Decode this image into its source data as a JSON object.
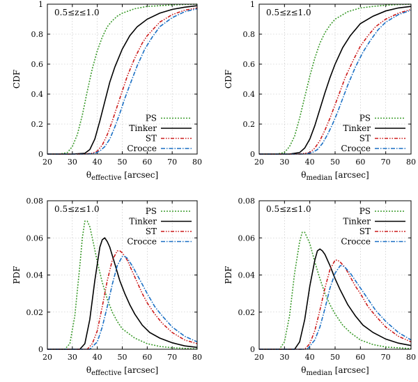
{
  "chart_data": [
    {
      "type": "line",
      "panel": "top-left",
      "ylabel": "CDF",
      "xlabel_main": "θ",
      "xlabel_sub": "effective",
      "xlabel_unit": " [arcsec]",
      "annotation": "0.5≤z≤1.0",
      "legend_position": "bottom-right",
      "xlim": [
        20,
        80
      ],
      "ylim": [
        0,
        1
      ],
      "xticks": [
        "20",
        "30",
        "40",
        "50",
        "60",
        "70",
        "80"
      ],
      "yticks": [
        "0",
        "0.2",
        "0.4",
        "0.6",
        "0.8",
        "1"
      ],
      "series": [
        {
          "name": "PS",
          "color": "#3a9a2a",
          "dash": "2 2",
          "x": [
            20,
            25,
            28,
            30,
            32,
            34,
            36,
            38,
            40,
            42,
            44,
            46,
            48,
            50,
            55,
            60,
            65,
            70,
            75,
            80
          ],
          "y": [
            0,
            0,
            0.01,
            0.05,
            0.13,
            0.26,
            0.42,
            0.57,
            0.69,
            0.78,
            0.85,
            0.89,
            0.92,
            0.94,
            0.97,
            0.985,
            0.99,
            0.995,
            0.998,
            1.0
          ]
        },
        {
          "name": "Tinker",
          "color": "#000000",
          "dash": "",
          "x": [
            20,
            30,
            35,
            37,
            39,
            41,
            43,
            45,
            47,
            50,
            53,
            56,
            60,
            65,
            70,
            75,
            80
          ],
          "y": [
            0,
            0,
            0.005,
            0.03,
            0.1,
            0.22,
            0.35,
            0.48,
            0.58,
            0.7,
            0.79,
            0.85,
            0.9,
            0.94,
            0.965,
            0.98,
            0.99
          ]
        },
        {
          "name": "ST",
          "color": "#cc1a1a",
          "dash": "5 2 1.5 2 1.5 2",
          "x": [
            20,
            35,
            38,
            40,
            42,
            44,
            46,
            48,
            50,
            52,
            55,
            58,
            60,
            65,
            70,
            75,
            80
          ],
          "y": [
            0,
            0,
            0.005,
            0.02,
            0.06,
            0.13,
            0.22,
            0.32,
            0.42,
            0.52,
            0.64,
            0.74,
            0.79,
            0.88,
            0.93,
            0.96,
            0.975
          ]
        },
        {
          "name": "Crocce",
          "color": "#1a6fc4",
          "dash": "6 2 1.5 2",
          "x": [
            20,
            36,
            39,
            41,
            43,
            45,
            47,
            49,
            51,
            53,
            56,
            59,
            62,
            65,
            70,
            75,
            80
          ],
          "y": [
            0,
            0,
            0.005,
            0.02,
            0.05,
            0.1,
            0.18,
            0.27,
            0.37,
            0.46,
            0.59,
            0.7,
            0.78,
            0.85,
            0.91,
            0.95,
            0.97
          ]
        }
      ]
    },
    {
      "type": "line",
      "panel": "top-right",
      "ylabel": "CDF",
      "xlabel_main": "θ",
      "xlabel_sub": "median",
      "xlabel_unit": " [arcsec]",
      "annotation": "0.5≤z≤1.0",
      "legend_position": "bottom-right",
      "xlim": [
        20,
        80
      ],
      "ylim": [
        0,
        1
      ],
      "xticks": [
        "20",
        "30",
        "40",
        "50",
        "60",
        "70",
        "80"
      ],
      "yticks": [
        "0",
        "0.2",
        "0.4",
        "0.6",
        "0.8",
        "1"
      ],
      "series": [
        {
          "name": "PS",
          "color": "#3a9a2a",
          "dash": "2 2",
          "x": [
            20,
            27,
            30,
            32,
            34,
            36,
            38,
            40,
            42,
            44,
            46,
            48,
            50,
            55,
            60,
            65,
            70,
            75,
            80
          ],
          "y": [
            0,
            0,
            0.01,
            0.05,
            0.12,
            0.24,
            0.38,
            0.52,
            0.64,
            0.74,
            0.81,
            0.86,
            0.9,
            0.95,
            0.975,
            0.985,
            0.993,
            0.997,
            1.0
          ]
        },
        {
          "name": "Tinker",
          "color": "#000000",
          "dash": "",
          "x": [
            20,
            32,
            36,
            38,
            40,
            42,
            44,
            46,
            48,
            50,
            53,
            56,
            60,
            65,
            70,
            75,
            80
          ],
          "y": [
            0,
            0,
            0.01,
            0.04,
            0.1,
            0.19,
            0.3,
            0.41,
            0.51,
            0.6,
            0.71,
            0.79,
            0.87,
            0.92,
            0.955,
            0.975,
            0.985
          ]
        },
        {
          "name": "ST",
          "color": "#cc1a1a",
          "dash": "5 2 1.5 2 1.5 2",
          "x": [
            20,
            36,
            40,
            42,
            44,
            46,
            48,
            50,
            52,
            54,
            57,
            60,
            63,
            66,
            70,
            75,
            80
          ],
          "y": [
            0,
            0,
            0.01,
            0.04,
            0.09,
            0.16,
            0.24,
            0.33,
            0.42,
            0.51,
            0.62,
            0.72,
            0.79,
            0.85,
            0.9,
            0.94,
            0.965
          ]
        },
        {
          "name": "Crocce",
          "color": "#1a6fc4",
          "dash": "6 2 1.5 2",
          "x": [
            20,
            38,
            41,
            43,
            45,
            47,
            49,
            51,
            53,
            55,
            58,
            61,
            64,
            67,
            70,
            75,
            80
          ],
          "y": [
            0,
            0,
            0.01,
            0.03,
            0.07,
            0.13,
            0.2,
            0.28,
            0.37,
            0.46,
            0.58,
            0.68,
            0.76,
            0.83,
            0.88,
            0.93,
            0.96
          ]
        }
      ]
    },
    {
      "type": "line",
      "panel": "bottom-left",
      "ylabel": "PDF",
      "xlabel_main": "θ",
      "xlabel_sub": "effective",
      "xlabel_unit": " [arcsec]",
      "annotation": "0.5≤z≤1.0",
      "legend_position": "top-right",
      "xlim": [
        20,
        80
      ],
      "ylim": [
        0,
        0.08
      ],
      "xticks": [
        "20",
        "30",
        "40",
        "50",
        "60",
        "70",
        "80"
      ],
      "yticks": [
        "0",
        "0.02",
        "0.04",
        "0.06",
        "0.08"
      ],
      "series": [
        {
          "name": "PS",
          "color": "#3a9a2a",
          "dash": "2 2",
          "x": [
            20,
            27,
            29,
            31,
            33,
            34,
            35,
            36,
            37,
            38,
            40,
            42,
            44,
            46,
            48,
            50,
            55,
            60,
            65,
            70,
            80
          ],
          "y": [
            0,
            0,
            0.003,
            0.018,
            0.045,
            0.06,
            0.069,
            0.069,
            0.066,
            0.06,
            0.047,
            0.036,
            0.027,
            0.02,
            0.015,
            0.011,
            0.006,
            0.003,
            0.0015,
            0.0008,
            0.0002
          ]
        },
        {
          "name": "Tinker",
          "color": "#000000",
          "dash": "",
          "x": [
            20,
            33,
            35,
            37,
            39,
            41,
            42,
            43,
            44,
            45,
            47,
            49,
            51,
            53,
            55,
            58,
            61,
            65,
            70,
            75,
            80
          ],
          "y": [
            0,
            0,
            0.003,
            0.016,
            0.037,
            0.055,
            0.059,
            0.06,
            0.058,
            0.055,
            0.046,
            0.037,
            0.03,
            0.024,
            0.019,
            0.013,
            0.009,
            0.006,
            0.0035,
            0.0018,
            0.001
          ]
        },
        {
          "name": "ST",
          "color": "#cc1a1a",
          "dash": "5 2 1.5 2 1.5 2",
          "x": [
            20,
            36,
            38,
            40,
            42,
            44,
            46,
            48,
            49,
            50,
            52,
            54,
            56,
            58,
            60,
            63,
            66,
            70,
            75,
            80
          ],
          "y": [
            0,
            0,
            0.003,
            0.01,
            0.023,
            0.037,
            0.048,
            0.053,
            0.053,
            0.052,
            0.048,
            0.042,
            0.036,
            0.03,
            0.025,
            0.019,
            0.014,
            0.009,
            0.005,
            0.003
          ]
        },
        {
          "name": "Crocce",
          "color": "#1a6fc4",
          "dash": "6 2 1.5 2",
          "x": [
            20,
            37,
            40,
            42,
            44,
            46,
            48,
            50,
            51,
            52,
            54,
            56,
            58,
            60,
            63,
            66,
            70,
            75,
            80
          ],
          "y": [
            0,
            0,
            0.004,
            0.012,
            0.023,
            0.035,
            0.045,
            0.05,
            0.05,
            0.049,
            0.045,
            0.04,
            0.035,
            0.03,
            0.023,
            0.018,
            0.012,
            0.007,
            0.004
          ]
        }
      ]
    },
    {
      "type": "line",
      "panel": "bottom-right",
      "ylabel": "PDF",
      "xlabel_main": "θ",
      "xlabel_sub": "median",
      "xlabel_unit": " [arcsec]",
      "annotation": "0.5≤z≤1.0",
      "legend_position": "top-right",
      "xlim": [
        20,
        80
      ],
      "ylim": [
        0,
        0.08
      ],
      "xticks": [
        "20",
        "30",
        "40",
        "50",
        "60",
        "70",
        "80"
      ],
      "yticks": [
        "0",
        "0.02",
        "0.04",
        "0.06",
        "0.08"
      ],
      "series": [
        {
          "name": "PS",
          "color": "#3a9a2a",
          "dash": "2 2",
          "x": [
            20,
            28,
            30,
            32,
            34,
            36,
            37,
            38,
            40,
            42,
            44,
            46,
            48,
            50,
            53,
            56,
            60,
            65,
            70,
            80
          ],
          "y": [
            0,
            0,
            0.004,
            0.018,
            0.041,
            0.058,
            0.063,
            0.063,
            0.057,
            0.047,
            0.038,
            0.03,
            0.024,
            0.019,
            0.013,
            0.009,
            0.005,
            0.0025,
            0.0012,
            0.0003
          ]
        },
        {
          "name": "Tinker",
          "color": "#000000",
          "dash": "",
          "x": [
            20,
            34,
            36,
            38,
            40,
            42,
            43,
            44,
            45,
            46,
            48,
            50,
            52,
            55,
            58,
            61,
            65,
            70,
            75,
            80
          ],
          "y": [
            0,
            0,
            0.004,
            0.016,
            0.034,
            0.048,
            0.053,
            0.054,
            0.053,
            0.051,
            0.045,
            0.038,
            0.032,
            0.024,
            0.018,
            0.013,
            0.009,
            0.0055,
            0.0033,
            0.002
          ]
        },
        {
          "name": "ST",
          "color": "#cc1a1a",
          "dash": "5 2 1.5 2 1.5 2",
          "x": [
            20,
            38,
            40,
            42,
            44,
            46,
            48,
            50,
            51,
            52,
            54,
            56,
            58,
            60,
            63,
            66,
            70,
            75,
            80
          ],
          "y": [
            0,
            0,
            0.003,
            0.01,
            0.021,
            0.033,
            0.043,
            0.048,
            0.048,
            0.047,
            0.044,
            0.039,
            0.034,
            0.03,
            0.023,
            0.018,
            0.012,
            0.007,
            0.004
          ]
        },
        {
          "name": "Crocce",
          "color": "#1a6fc4",
          "dash": "6 2 1.5 2",
          "x": [
            20,
            39,
            42,
            44,
            46,
            48,
            50,
            52,
            53,
            54,
            56,
            58,
            60,
            63,
            66,
            70,
            75,
            80
          ],
          "y": [
            0,
            0,
            0.005,
            0.012,
            0.022,
            0.033,
            0.041,
            0.045,
            0.045,
            0.044,
            0.041,
            0.037,
            0.033,
            0.027,
            0.021,
            0.015,
            0.009,
            0.005
          ]
        }
      ]
    }
  ]
}
